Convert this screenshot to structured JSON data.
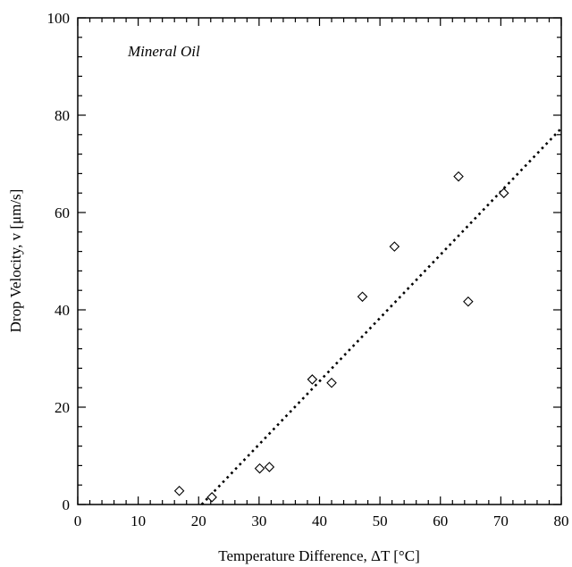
{
  "chart_data": {
    "type": "scatter",
    "annotation": "Mineral Oil",
    "xlabel": "Temperature Difference, ΔT [°C]",
    "ylabel": "Drop Velocity, v [μm/s]",
    "xlim": [
      0,
      80
    ],
    "ylim": [
      0,
      100
    ],
    "xticks": [
      0,
      10,
      20,
      30,
      40,
      50,
      60,
      70,
      80
    ],
    "yticks": [
      0,
      20,
      40,
      60,
      80,
      100
    ],
    "grid": false,
    "series": [
      {
        "marker": "diamond-open",
        "points": [
          {
            "x": 16.8,
            "y": 2.8
          },
          {
            "x": 22.2,
            "y": 1.5
          },
          {
            "x": 30.1,
            "y": 7.4
          },
          {
            "x": 31.7,
            "y": 7.7
          },
          {
            "x": 38.8,
            "y": 25.7
          },
          {
            "x": 42.0,
            "y": 25.0
          },
          {
            "x": 47.1,
            "y": 42.7
          },
          {
            "x": 52.4,
            "y": 53.0
          },
          {
            "x": 63.0,
            "y": 67.4
          },
          {
            "x": 64.6,
            "y": 41.7
          },
          {
            "x": 70.5,
            "y": 64.0
          }
        ]
      }
    ],
    "fit_line": {
      "style": "dotted",
      "x": [
        20.5,
        80
      ],
      "y": [
        0,
        77.3
      ]
    },
    "colors": {
      "marks": "#000000",
      "background": "#ffffff"
    }
  }
}
